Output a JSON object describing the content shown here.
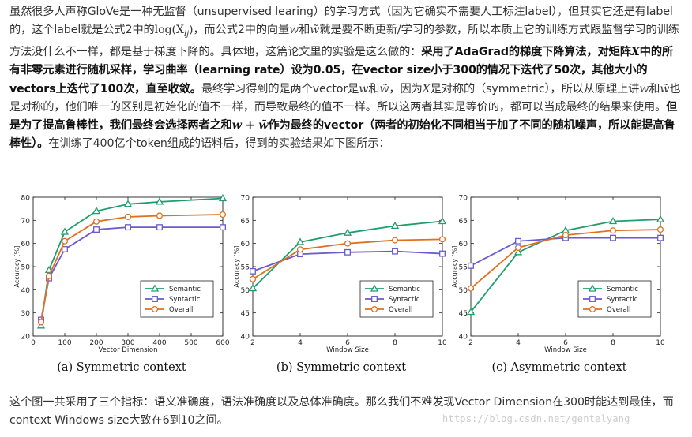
{
  "article": {
    "para1": {
      "t1": "虽然很多人声称GloVe是一种无监督（unsupervised learing）的学习方式（因为它确实不需要人工标注label），但其实它还是有label的，这个label就是公式2中的",
      "m1": "log(X",
      "m1sub": "ij",
      "m1end": ")",
      "t2": "，而公式2中的向量",
      "w": "w",
      "t3": "和",
      "wt": "w̃",
      "t4": "就是要不断更新/学习的参数，所以本质上它的训练方式跟监督学习的训练方法没什么不一样，都是基于梯度下降的。具体地，这篇论文里的实验是这么做的：",
      "b1": "采用了AdaGrad的梯度下降算法，对矩阵",
      "X": "X",
      "b2": "中的所有非零元素进行随机采样，学习曲率（learning rate）设为0.05，在vector size小于300的情况下迭代了50次，其他大小的vectors上迭代了100次，直至收敛。",
      "t5": "最终学习得到的是两个vector是",
      "t6": "，因为",
      "t7": "是对称的（symmetric），所以从原理上讲",
      "t8": "也是对称的，他们唯一的区别是初始化的值不一样，而导致最终的值不一样。所以这两者其实是等价的，都可以当成最终的结果来使用。",
      "b3": "但是为了提高鲁棒性，我们最终会选择两者之和",
      "wsum": "w + w̃",
      "b4": "作为最终的vector（两者的初始化不同相当于加了不同的随机噪声，所以能提高鲁棒性）。",
      "t9": "在训练了400亿个token组成的语料后，得到的实验结果如下图所示："
    },
    "para2": "这个图一共采用了三个指标：语义准确度，语法准确度以及总体准确度。那么我们不难发现Vector Dimension在300时能达到最佳，而context Windows size大致在6到10之间。",
    "watermark": "https://blog.csdn.net/gentelyang"
  },
  "legend": {
    "semantic": "Semantic",
    "syntactic": "Syntactic",
    "overall": "Overall"
  },
  "captions": {
    "a": "(a) Symmetric context",
    "b": "(b) Symmetric context",
    "c": "(c) Asymmetric context"
  },
  "colors": {
    "semantic": "#1f9e6d",
    "syntactic": "#6a5acd",
    "overall": "#e07020"
  },
  "chart_data": [
    {
      "type": "line",
      "xlabel": "Vector Dimension",
      "ylabel": "Accuracy [%]",
      "x": [
        25,
        50,
        100,
        200,
        300,
        400,
        600
      ],
      "xticks": [
        0,
        100,
        200,
        300,
        400,
        500,
        600
      ],
      "xlim": [
        0,
        600
      ],
      "ylim": [
        20,
        80
      ],
      "yticks": [
        20,
        30,
        40,
        50,
        60,
        70,
        80
      ],
      "legend_position": "lower-right",
      "series": [
        {
          "name": "Semantic",
          "values": [
            24.5,
            48.5,
            65,
            74,
            77,
            78,
            79.5
          ]
        },
        {
          "name": "Syntactic",
          "values": [
            27,
            45,
            57.5,
            66,
            67,
            67,
            67
          ]
        },
        {
          "name": "Overall",
          "values": [
            26,
            46,
            61,
            69.5,
            71.5,
            72,
            72.5
          ]
        }
      ]
    },
    {
      "type": "line",
      "xlabel": "Window Size",
      "ylabel": "Accuracy [%]",
      "x": [
        2,
        4,
        6,
        8,
        10
      ],
      "xticks": [
        2,
        4,
        6,
        8,
        10
      ],
      "xlim": [
        2,
        10
      ],
      "ylim": [
        40,
        70
      ],
      "yticks": [
        40,
        45,
        50,
        55,
        60,
        65,
        70
      ],
      "legend_position": "lower-right",
      "series": [
        {
          "name": "Semantic",
          "values": [
            50.3,
            60.3,
            62.3,
            63.8,
            64.8
          ]
        },
        {
          "name": "Syntactic",
          "values": [
            54,
            57.7,
            58.1,
            58.3,
            57.8
          ]
        },
        {
          "name": "Overall",
          "values": [
            52.3,
            58.7,
            60,
            60.7,
            60.9
          ]
        }
      ]
    },
    {
      "type": "line",
      "xlabel": "Window Size",
      "ylabel": "Accuracy [%]",
      "x": [
        2,
        4,
        6,
        8,
        10
      ],
      "xticks": [
        2,
        4,
        6,
        8,
        10
      ],
      "xlim": [
        2,
        10
      ],
      "ylim": [
        40,
        70
      ],
      "yticks": [
        40,
        45,
        50,
        55,
        60,
        65,
        70
      ],
      "legend_position": "lower-right",
      "series": [
        {
          "name": "Semantic",
          "values": [
            45.2,
            58.1,
            62.8,
            64.8,
            65.2
          ]
        },
        {
          "name": "Syntactic",
          "values": [
            55.2,
            60.5,
            61.2,
            61.2,
            61.2
          ]
        },
        {
          "name": "Overall",
          "values": [
            50.3,
            59.1,
            61.8,
            62.8,
            63
          ]
        }
      ]
    }
  ]
}
